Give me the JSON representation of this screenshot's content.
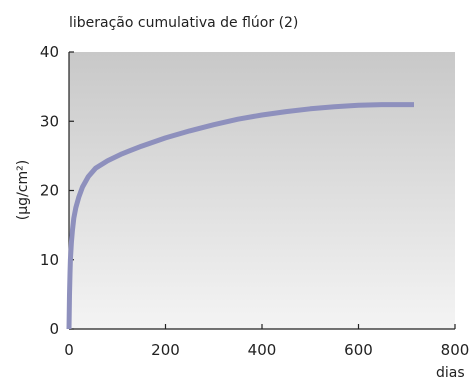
{
  "chart_data": {
    "type": "line",
    "title": "liberação cumulativa de flúor (2)",
    "xlabel": "dias",
    "ylabel": "(µg/cm²)",
    "xlim": [
      0,
      800
    ],
    "ylim": [
      0,
      40
    ],
    "x_ticks": [
      0,
      200,
      400,
      600,
      800
    ],
    "y_ticks": [
      0,
      10,
      20,
      30,
      40
    ],
    "grid": false,
    "legend": "none",
    "background": "vertical gradient light grey",
    "series": [
      {
        "color": "#8e90bd",
        "x": [
          0,
          1,
          2,
          3,
          5,
          7,
          10,
          14,
          20,
          28,
          40,
          55,
          80,
          110,
          150,
          200,
          250,
          300,
          350,
          400,
          450,
          500,
          550,
          600,
          650,
          700,
          715
        ],
        "y": [
          0,
          5,
          8,
          10,
          12.5,
          14.2,
          16,
          17.5,
          19,
          20.5,
          22,
          23.2,
          24.3,
          25.3,
          26.4,
          27.6,
          28.6,
          29.5,
          30.3,
          30.9,
          31.4,
          31.8,
          32.1,
          32.3,
          32.4,
          32.4,
          32.4
        ]
      }
    ]
  }
}
